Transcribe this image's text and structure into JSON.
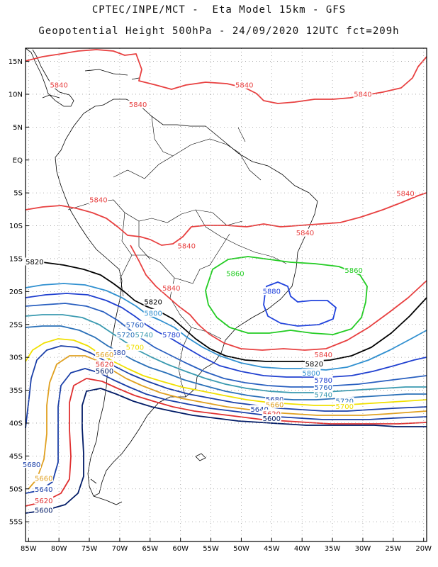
{
  "header": {
    "line1": "CPTEC/INPE/MCT -  Eta Model 15km - GFS",
    "line2": "Geopotential Height 500hPa - 24/09/2020 12UTC fct=209h"
  },
  "map": {
    "lat_labels": [
      "15N",
      "10N",
      "5N",
      "EQ",
      "5S",
      "10S",
      "15S",
      "20S",
      "25S",
      "30S",
      "35S",
      "40S",
      "45S",
      "50S",
      "55S"
    ],
    "lat_values": [
      15,
      10,
      5,
      0,
      -5,
      -10,
      -15,
      -20,
      -25,
      -30,
      -35,
      -40,
      -45,
      -50,
      -55
    ],
    "lon_labels": [
      "85W",
      "80W",
      "75W",
      "70W",
      "65W",
      "60W",
      "55W",
      "50W",
      "45W",
      "40W",
      "35W",
      "30W",
      "25W",
      "20W"
    ],
    "lon_values": [
      -85,
      -80,
      -75,
      -70,
      -65,
      -60,
      -55,
      -50,
      -45,
      -40,
      -35,
      -30,
      -25,
      -20
    ],
    "lon_range": [
      -85.5,
      -19.5
    ],
    "lat_range": [
      -58,
      17
    ],
    "grid": true
  },
  "contours": [
    {
      "level": "5600",
      "color": "#001a66"
    },
    {
      "level": "5620",
      "color": "#e03030"
    },
    {
      "level": "5640",
      "color": "#1a3fa8"
    },
    {
      "level": "5660",
      "color": "#e0a020"
    },
    {
      "level": "5680",
      "color": "#1a3fa8"
    },
    {
      "level": "5700",
      "color": "#f0e000"
    },
    {
      "level": "5720",
      "color": "#2a70b8"
    },
    {
      "level": "5740",
      "color": "#3a9ab0"
    },
    {
      "level": "5760",
      "color": "#2a60c0"
    },
    {
      "level": "5780",
      "color": "#2040d0"
    },
    {
      "level": "5800",
      "color": "#3090d0"
    },
    {
      "level": "5820",
      "color": "#000000"
    },
    {
      "level": "5840",
      "color": "#e84040"
    },
    {
      "level": "5860",
      "color": "#22cc22"
    },
    {
      "level": "5880",
      "color": "#2244dd"
    }
  ],
  "contour_labels": [
    {
      "text": "5840",
      "color": "#e84040",
      "lon": -80,
      "lat": 11.2
    },
    {
      "text": "5840",
      "color": "#e84040",
      "lon": -67,
      "lat": 8.2
    },
    {
      "text": "5840",
      "color": "#e84040",
      "lon": -49.5,
      "lat": 11.2
    },
    {
      "text": "5840",
      "color": "#e84040",
      "lon": -30,
      "lat": 9.8
    },
    {
      "text": "5840",
      "color": "#e84040",
      "lon": -23,
      "lat": -5.3
    },
    {
      "text": "5840",
      "color": "#e84040",
      "lon": -73.5,
      "lat": -6.3
    },
    {
      "text": "5840",
      "color": "#e84040",
      "lon": -39.5,
      "lat": -11.3
    },
    {
      "text": "5840",
      "color": "#e84040",
      "lon": -59,
      "lat": -13.3
    },
    {
      "text": "5840",
      "color": "#e84040",
      "lon": -61.5,
      "lat": -19.7
    },
    {
      "text": "5840",
      "color": "#e84040",
      "lon": -36.5,
      "lat": -29.8
    },
    {
      "text": "5820",
      "color": "#000000",
      "lon": -84,
      "lat": -15.7
    },
    {
      "text": "5820",
      "color": "#000000",
      "lon": -64.5,
      "lat": -21.8
    },
    {
      "text": "5820",
      "color": "#000000",
      "lon": -38,
      "lat": -31.2
    },
    {
      "text": "5860",
      "color": "#22cc22",
      "lon": -51,
      "lat": -17.5
    },
    {
      "text": "5860",
      "color": "#22cc22",
      "lon": -31.5,
      "lat": -17.0
    },
    {
      "text": "5880",
      "color": "#2244dd",
      "lon": -45,
      "lat": -20.2
    },
    {
      "text": "5800",
      "color": "#3090d0",
      "lon": -64.5,
      "lat": -23.5
    },
    {
      "text": "5800",
      "color": "#3090d0",
      "lon": -38.5,
      "lat": -32.6
    },
    {
      "text": "5780",
      "color": "#2040d0",
      "lon": -61.5,
      "lat": -26.8
    },
    {
      "text": "5780",
      "color": "#2040d0",
      "lon": -36.5,
      "lat": -33.7
    },
    {
      "text": "5760",
      "color": "#2a60c0",
      "lon": -67.5,
      "lat": -25.3
    },
    {
      "text": "5760",
      "color": "#2a60c0",
      "lon": -36.5,
      "lat": -34.8
    },
    {
      "text": "5720",
      "color": "#2a70b8",
      "lon": -69,
      "lat": -26.8
    },
    {
      "text": "5740",
      "color": "#3a9ab0",
      "lon": -66,
      "lat": -26.8
    },
    {
      "text": "5740",
      "color": "#3a9ab0",
      "lon": -36.5,
      "lat": -35.9
    },
    {
      "text": "5720",
      "color": "#2a70b8",
      "lon": -33,
      "lat": -36.9
    },
    {
      "text": "5700",
      "color": "#f0e000",
      "lon": -67.5,
      "lat": -28.7
    },
    {
      "text": "5700",
      "color": "#f0e000",
      "lon": -33,
      "lat": -37.7
    },
    {
      "text": "5680",
      "color": "#1a3fa8",
      "lon": -70.5,
      "lat": -29.5
    },
    {
      "text": "5660",
      "color": "#e0a020",
      "lon": -72.5,
      "lat": -29.8
    },
    {
      "text": "5620",
      "color": "#e03030",
      "lon": -72.5,
      "lat": -31.3
    },
    {
      "text": "5600",
      "color": "#001a66",
      "lon": -72.5,
      "lat": -32.3
    },
    {
      "text": "5680",
      "color": "#1a3fa8",
      "lon": -44.5,
      "lat": -36.6
    },
    {
      "text": "5660",
      "color": "#e0a020",
      "lon": -44.5,
      "lat": -37.4
    },
    {
      "text": "5640",
      "color": "#1a3fa8",
      "lon": -47,
      "lat": -38.1
    },
    {
      "text": "5620",
      "color": "#e03030",
      "lon": -45,
      "lat": -38.8
    },
    {
      "text": "5600",
      "color": "#001a66",
      "lon": -45,
      "lat": -39.5
    },
    {
      "text": "5680",
      "color": "#1a3fa8",
      "lon": -84.5,
      "lat": -46.5
    },
    {
      "text": "5660",
      "color": "#e0a020",
      "lon": -82.5,
      "lat": -48.6
    },
    {
      "text": "5640",
      "color": "#1a3fa8",
      "lon": -82.5,
      "lat": -50.3
    },
    {
      "text": "5620",
      "color": "#e03030",
      "lon": -82.5,
      "lat": -52.0
    },
    {
      "text": "5600",
      "color": "#001a66",
      "lon": -82.5,
      "lat": -53.5
    }
  ]
}
